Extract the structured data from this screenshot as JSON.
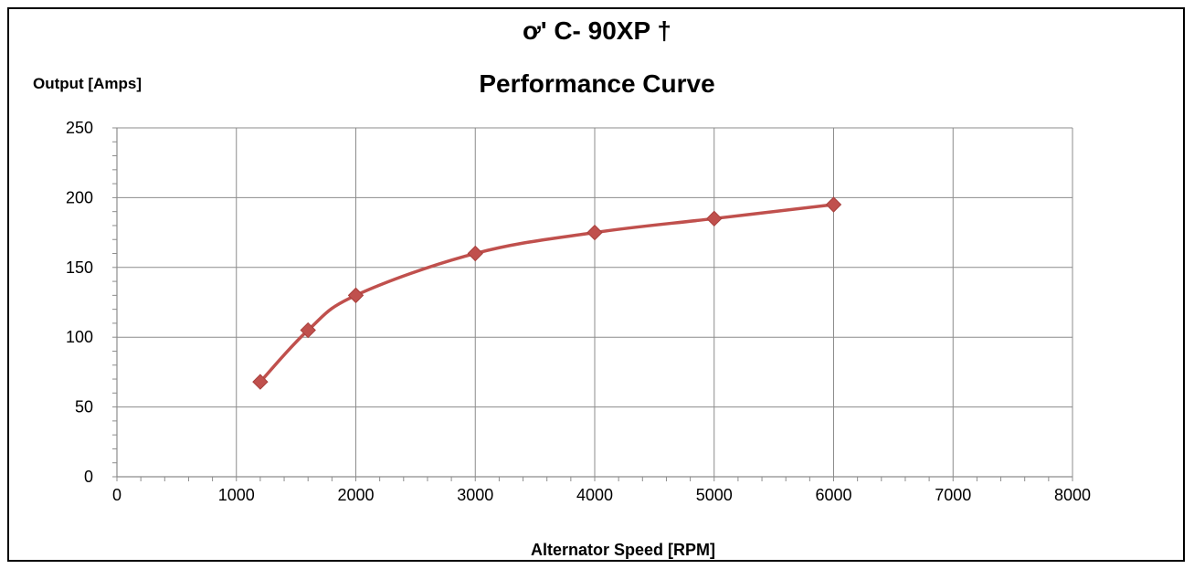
{
  "chart_data": {
    "type": "line",
    "title_line1": "ơ' C-  90XP      †",
    "title_line2": "Performance Curve",
    "ylabel": "Output [Amps]",
    "xlabel": "Alternator Speed [RPM]",
    "xlim": [
      0,
      8000
    ],
    "ylim": [
      0,
      250
    ],
    "x_ticks": [
      0,
      1000,
      2000,
      3000,
      4000,
      5000,
      6000,
      7000,
      8000
    ],
    "y_ticks": [
      0,
      50,
      100,
      150,
      200,
      250
    ],
    "grid": true,
    "series": [
      {
        "color": "#C0504D",
        "marker": "diamond",
        "smooth": true,
        "x": [
          1200,
          1600,
          2000,
          3000,
          4000,
          5000,
          6000
        ],
        "y": [
          68,
          105,
          130,
          160,
          175,
          185,
          195
        ]
      }
    ]
  }
}
